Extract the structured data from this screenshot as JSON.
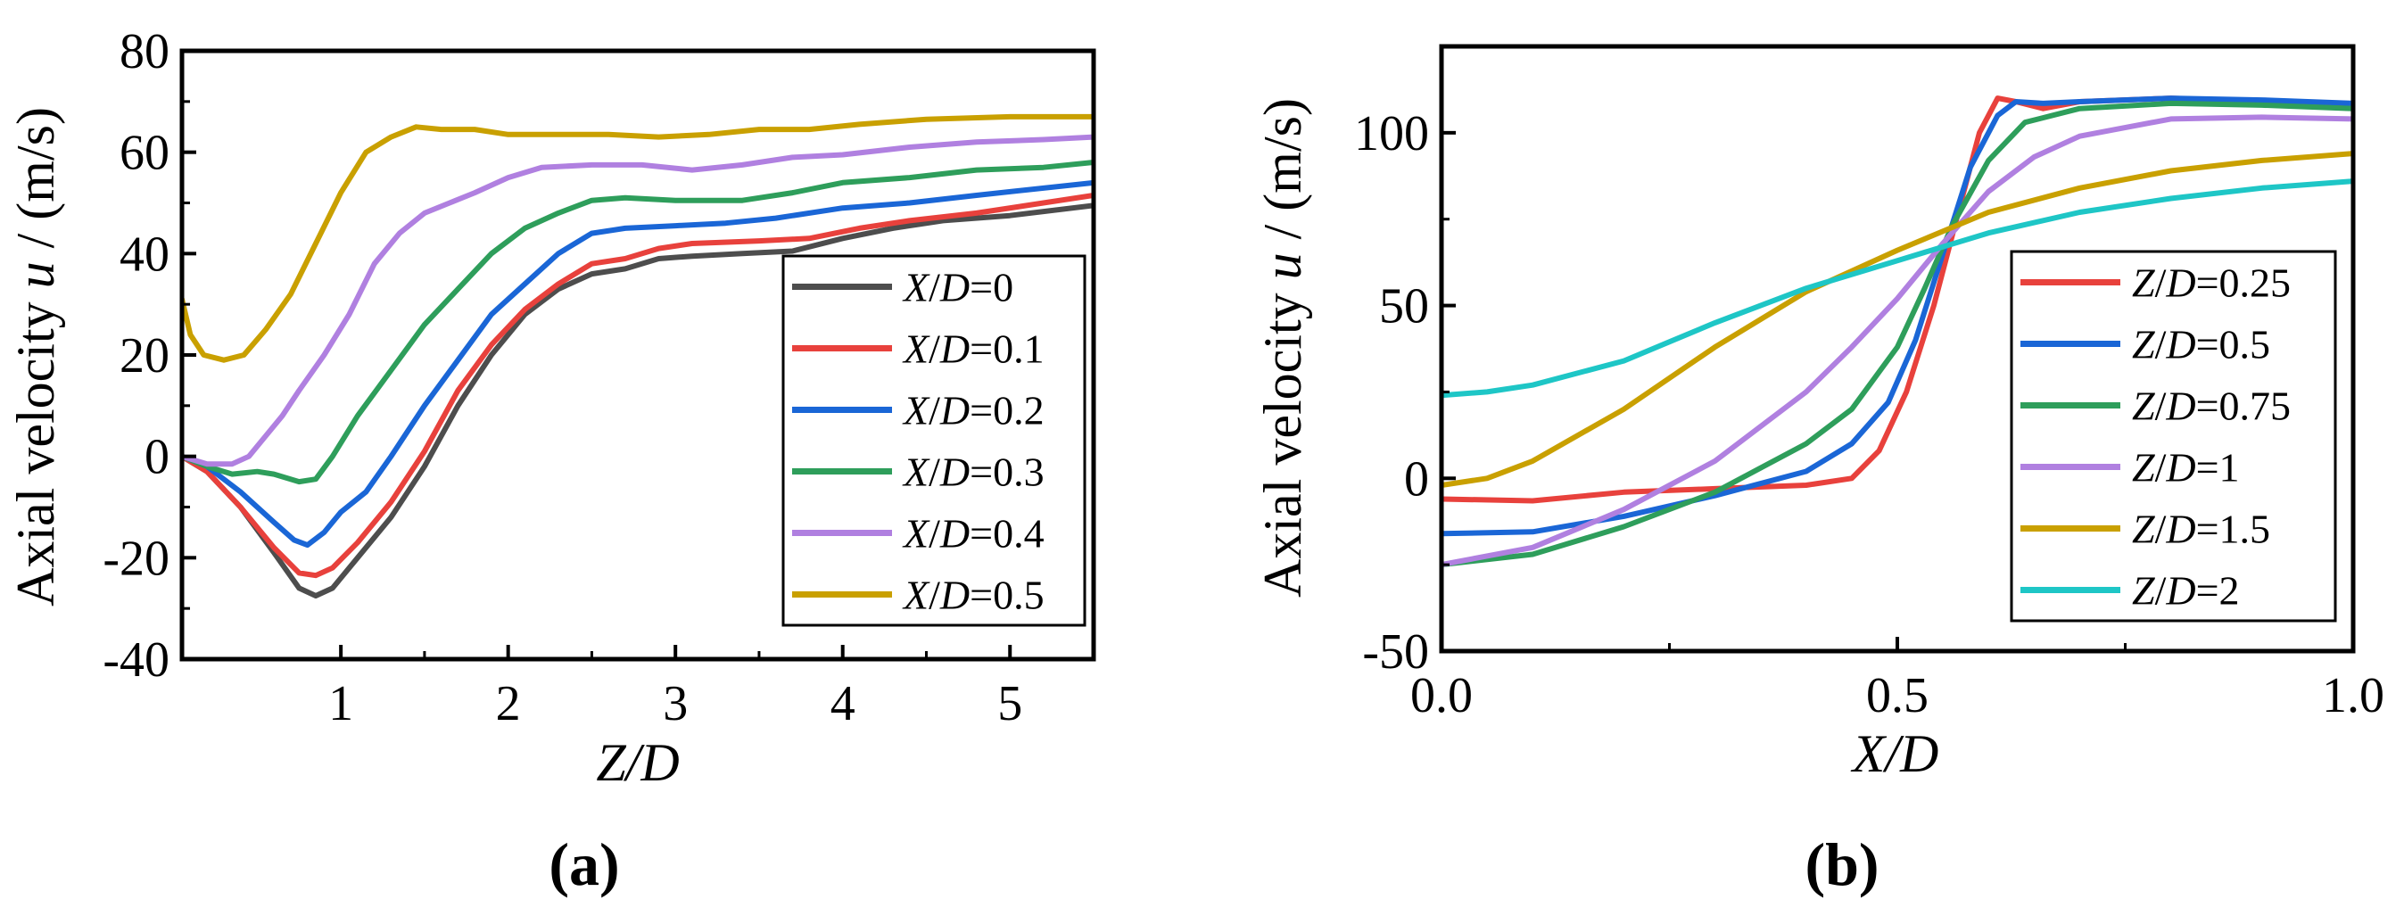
{
  "chart_data": [
    {
      "type": "line",
      "panel_label": "(a)",
      "xlabel": "Z/D",
      "ylabel": "Axial velocity u / (m/s)",
      "xlim": [
        0.05,
        5.5
      ],
      "ylim": [
        -40,
        80
      ],
      "xticks": [
        "1",
        "2",
        "3",
        "4",
        "5"
      ],
      "yticks": [
        "-40",
        "-20",
        "0",
        "20",
        "40",
        "60",
        "80"
      ],
      "xtick_values": [
        1,
        2,
        3,
        4,
        5
      ],
      "ytick_values": [
        -40,
        -20,
        0,
        20,
        40,
        60,
        80
      ],
      "legend_position": "bottom-right",
      "series": [
        {
          "name": "X/D=0",
          "color": "#4d4d4d",
          "points": [
            [
              0.05,
              0
            ],
            [
              0.2,
              -3
            ],
            [
              0.4,
              -10
            ],
            [
              0.6,
              -19
            ],
            [
              0.75,
              -26
            ],
            [
              0.85,
              -27.5
            ],
            [
              0.95,
              -26
            ],
            [
              1.1,
              -20
            ],
            [
              1.3,
              -12
            ],
            [
              1.5,
              -2
            ],
            [
              1.7,
              10
            ],
            [
              1.9,
              20
            ],
            [
              2.1,
              28
            ],
            [
              2.3,
              33
            ],
            [
              2.5,
              36
            ],
            [
              2.7,
              37
            ],
            [
              2.9,
              39
            ],
            [
              3.1,
              39.5
            ],
            [
              3.4,
              40
            ],
            [
              3.7,
              40.5
            ],
            [
              4.0,
              43
            ],
            [
              4.3,
              45
            ],
            [
              4.6,
              46.5
            ],
            [
              5.0,
              47.5
            ],
            [
              5.5,
              49.5
            ]
          ]
        },
        {
          "name": "X/D=0.1",
          "color": "#e8413c",
          "points": [
            [
              0.05,
              0
            ],
            [
              0.2,
              -3
            ],
            [
              0.4,
              -10
            ],
            [
              0.6,
              -18
            ],
            [
              0.75,
              -23
            ],
            [
              0.85,
              -23.5
            ],
            [
              0.95,
              -22
            ],
            [
              1.1,
              -17
            ],
            [
              1.3,
              -9
            ],
            [
              1.5,
              1
            ],
            [
              1.7,
              13
            ],
            [
              1.9,
              22
            ],
            [
              2.1,
              29
            ],
            [
              2.3,
              34
            ],
            [
              2.5,
              38
            ],
            [
              2.7,
              39
            ],
            [
              2.9,
              41
            ],
            [
              3.1,
              42
            ],
            [
              3.5,
              42.5
            ],
            [
              3.8,
              43
            ],
            [
              4.1,
              45
            ],
            [
              4.4,
              46.5
            ],
            [
              4.8,
              48
            ],
            [
              5.5,
              51.5
            ]
          ]
        },
        {
          "name": "X/D=0.2",
          "color": "#1a66d6",
          "points": [
            [
              0.05,
              0
            ],
            [
              0.2,
              -2
            ],
            [
              0.4,
              -7
            ],
            [
              0.6,
              -13
            ],
            [
              0.72,
              -16.5
            ],
            [
              0.8,
              -17.5
            ],
            [
              0.9,
              -15
            ],
            [
              1.0,
              -11
            ],
            [
              1.15,
              -7
            ],
            [
              1.3,
              0
            ],
            [
              1.5,
              10
            ],
            [
              1.7,
              19
            ],
            [
              1.9,
              28
            ],
            [
              2.1,
              34
            ],
            [
              2.3,
              40
            ],
            [
              2.5,
              44
            ],
            [
              2.7,
              45
            ],
            [
              3.0,
              45.5
            ],
            [
              3.3,
              46
            ],
            [
              3.6,
              47
            ],
            [
              4.0,
              49
            ],
            [
              4.4,
              50
            ],
            [
              4.8,
              51.5
            ],
            [
              5.5,
              54
            ]
          ]
        },
        {
          "name": "X/D=0.3",
          "color": "#2e9e5b",
          "points": [
            [
              0.05,
              0
            ],
            [
              0.2,
              -2
            ],
            [
              0.35,
              -3.5
            ],
            [
              0.5,
              -3
            ],
            [
              0.6,
              -3.5
            ],
            [
              0.75,
              -5
            ],
            [
              0.85,
              -4.5
            ],
            [
              0.95,
              0
            ],
            [
              1.1,
              8
            ],
            [
              1.3,
              17
            ],
            [
              1.5,
              26
            ],
            [
              1.7,
              33
            ],
            [
              1.9,
              40
            ],
            [
              2.1,
              45
            ],
            [
              2.3,
              48
            ],
            [
              2.5,
              50.5
            ],
            [
              2.7,
              51
            ],
            [
              3.0,
              50.5
            ],
            [
              3.4,
              50.5
            ],
            [
              3.7,
              52
            ],
            [
              4.0,
              54
            ],
            [
              4.4,
              55
            ],
            [
              4.8,
              56.5
            ],
            [
              5.2,
              57
            ],
            [
              5.5,
              58
            ]
          ]
        },
        {
          "name": "X/D=0.4",
          "color": "#b080e0",
          "points": [
            [
              0.05,
              0
            ],
            [
              0.2,
              -1.5
            ],
            [
              0.35,
              -1.5
            ],
            [
              0.45,
              0
            ],
            [
              0.55,
              4
            ],
            [
              0.65,
              8
            ],
            [
              0.75,
              13
            ],
            [
              0.9,
              20
            ],
            [
              1.05,
              28
            ],
            [
              1.2,
              38
            ],
            [
              1.35,
              44
            ],
            [
              1.5,
              48
            ],
            [
              1.65,
              50
            ],
            [
              1.8,
              52
            ],
            [
              2.0,
              55
            ],
            [
              2.2,
              57
            ],
            [
              2.5,
              57.5
            ],
            [
              2.8,
              57.5
            ],
            [
              3.1,
              56.5
            ],
            [
              3.4,
              57.5
            ],
            [
              3.7,
              59
            ],
            [
              4.0,
              59.5
            ],
            [
              4.4,
              61
            ],
            [
              4.8,
              62
            ],
            [
              5.2,
              62.5
            ],
            [
              5.5,
              63
            ]
          ]
        },
        {
          "name": "X/D=0.5",
          "color": "#c9a000",
          "points": [
            [
              0.05,
              31
            ],
            [
              0.1,
              24
            ],
            [
              0.18,
              20
            ],
            [
              0.3,
              19
            ],
            [
              0.42,
              20
            ],
            [
              0.55,
              25
            ],
            [
              0.7,
              32
            ],
            [
              0.85,
              42
            ],
            [
              1.0,
              52
            ],
            [
              1.15,
              60
            ],
            [
              1.3,
              63
            ],
            [
              1.45,
              65
            ],
            [
              1.6,
              64.5
            ],
            [
              1.8,
              64.5
            ],
            [
              2.0,
              63.5
            ],
            [
              2.3,
              63.5
            ],
            [
              2.6,
              63.5
            ],
            [
              2.9,
              63
            ],
            [
              3.2,
              63.5
            ],
            [
              3.5,
              64.5
            ],
            [
              3.8,
              64.5
            ],
            [
              4.1,
              65.5
            ],
            [
              4.5,
              66.5
            ],
            [
              5.0,
              67
            ],
            [
              5.5,
              67
            ]
          ]
        }
      ]
    },
    {
      "type": "line",
      "panel_label": "(b)",
      "xlabel": "X/D",
      "ylabel": "Axial velocity u / (m/s)",
      "xlim": [
        0,
        1
      ],
      "ylim": [
        -50,
        125
      ],
      "xticks": [
        "0.0",
        "0.5",
        "1.0"
      ],
      "yticks": [
        "-50",
        "0",
        "50",
        "100"
      ],
      "xtick_values": [
        0,
        0.5,
        1
      ],
      "ytick_values": [
        -50,
        0,
        50,
        100
      ],
      "legend_position": "bottom-right",
      "series": [
        {
          "name": "Z/D=0.25",
          "color": "#e8413c",
          "points": [
            [
              0,
              -6
            ],
            [
              0.1,
              -6.5
            ],
            [
              0.2,
              -4
            ],
            [
              0.3,
              -3
            ],
            [
              0.4,
              -2
            ],
            [
              0.45,
              0
            ],
            [
              0.48,
              8
            ],
            [
              0.51,
              25
            ],
            [
              0.54,
              50
            ],
            [
              0.57,
              80
            ],
            [
              0.59,
              100
            ],
            [
              0.61,
              110
            ],
            [
              0.63,
              109
            ],
            [
              0.66,
              107
            ],
            [
              0.7,
              109
            ],
            [
              0.8,
              110
            ],
            [
              0.9,
              109
            ],
            [
              1.0,
              107
            ]
          ]
        },
        {
          "name": "Z/D=0.5",
          "color": "#1a66d6",
          "points": [
            [
              0,
              -16
            ],
            [
              0.1,
              -15.5
            ],
            [
              0.2,
              -11
            ],
            [
              0.3,
              -5
            ],
            [
              0.4,
              2
            ],
            [
              0.45,
              10
            ],
            [
              0.49,
              22
            ],
            [
              0.52,
              40
            ],
            [
              0.55,
              65
            ],
            [
              0.58,
              90
            ],
            [
              0.61,
              105
            ],
            [
              0.63,
              109
            ],
            [
              0.66,
              108.5
            ],
            [
              0.7,
              109
            ],
            [
              0.8,
              110
            ],
            [
              0.9,
              109.5
            ],
            [
              1.0,
              108.5
            ]
          ]
        },
        {
          "name": "Z/D=0.75",
          "color": "#2e9e5b",
          "points": [
            [
              0,
              -25
            ],
            [
              0.1,
              -22
            ],
            [
              0.2,
              -14
            ],
            [
              0.3,
              -4
            ],
            [
              0.4,
              10
            ],
            [
              0.45,
              20
            ],
            [
              0.5,
              38
            ],
            [
              0.53,
              55
            ],
            [
              0.56,
              73
            ],
            [
              0.6,
              92
            ],
            [
              0.64,
              103
            ],
            [
              0.7,
              107
            ],
            [
              0.8,
              108.5
            ],
            [
              0.9,
              108
            ],
            [
              1.0,
              107
            ]
          ]
        },
        {
          "name": "Z/D=1",
          "color": "#b080e0",
          "points": [
            [
              0,
              -25
            ],
            [
              0.1,
              -20
            ],
            [
              0.2,
              -9
            ],
            [
              0.3,
              5
            ],
            [
              0.4,
              25
            ],
            [
              0.45,
              38
            ],
            [
              0.5,
              52
            ],
            [
              0.55,
              68
            ],
            [
              0.6,
              83
            ],
            [
              0.65,
              93
            ],
            [
              0.7,
              99
            ],
            [
              0.8,
              104
            ],
            [
              0.9,
              104.5
            ],
            [
              1.0,
              104
            ]
          ]
        },
        {
          "name": "Z/D=1.5",
          "color": "#c9a000",
          "points": [
            [
              0,
              -2
            ],
            [
              0.05,
              0
            ],
            [
              0.1,
              5
            ],
            [
              0.2,
              20
            ],
            [
              0.3,
              38
            ],
            [
              0.4,
              54
            ],
            [
              0.5,
              66
            ],
            [
              0.6,
              77
            ],
            [
              0.7,
              84
            ],
            [
              0.8,
              89
            ],
            [
              0.9,
              92
            ],
            [
              1.0,
              94
            ]
          ]
        },
        {
          "name": "Z/D=2",
          "color": "#1ec6c6",
          "points": [
            [
              0,
              24
            ],
            [
              0.05,
              25
            ],
            [
              0.1,
              27
            ],
            [
              0.2,
              34
            ],
            [
              0.3,
              45
            ],
            [
              0.4,
              55
            ],
            [
              0.5,
              63
            ],
            [
              0.6,
              71
            ],
            [
              0.7,
              77
            ],
            [
              0.8,
              81
            ],
            [
              0.9,
              84
            ],
            [
              1.0,
              86
            ]
          ]
        }
      ]
    }
  ]
}
